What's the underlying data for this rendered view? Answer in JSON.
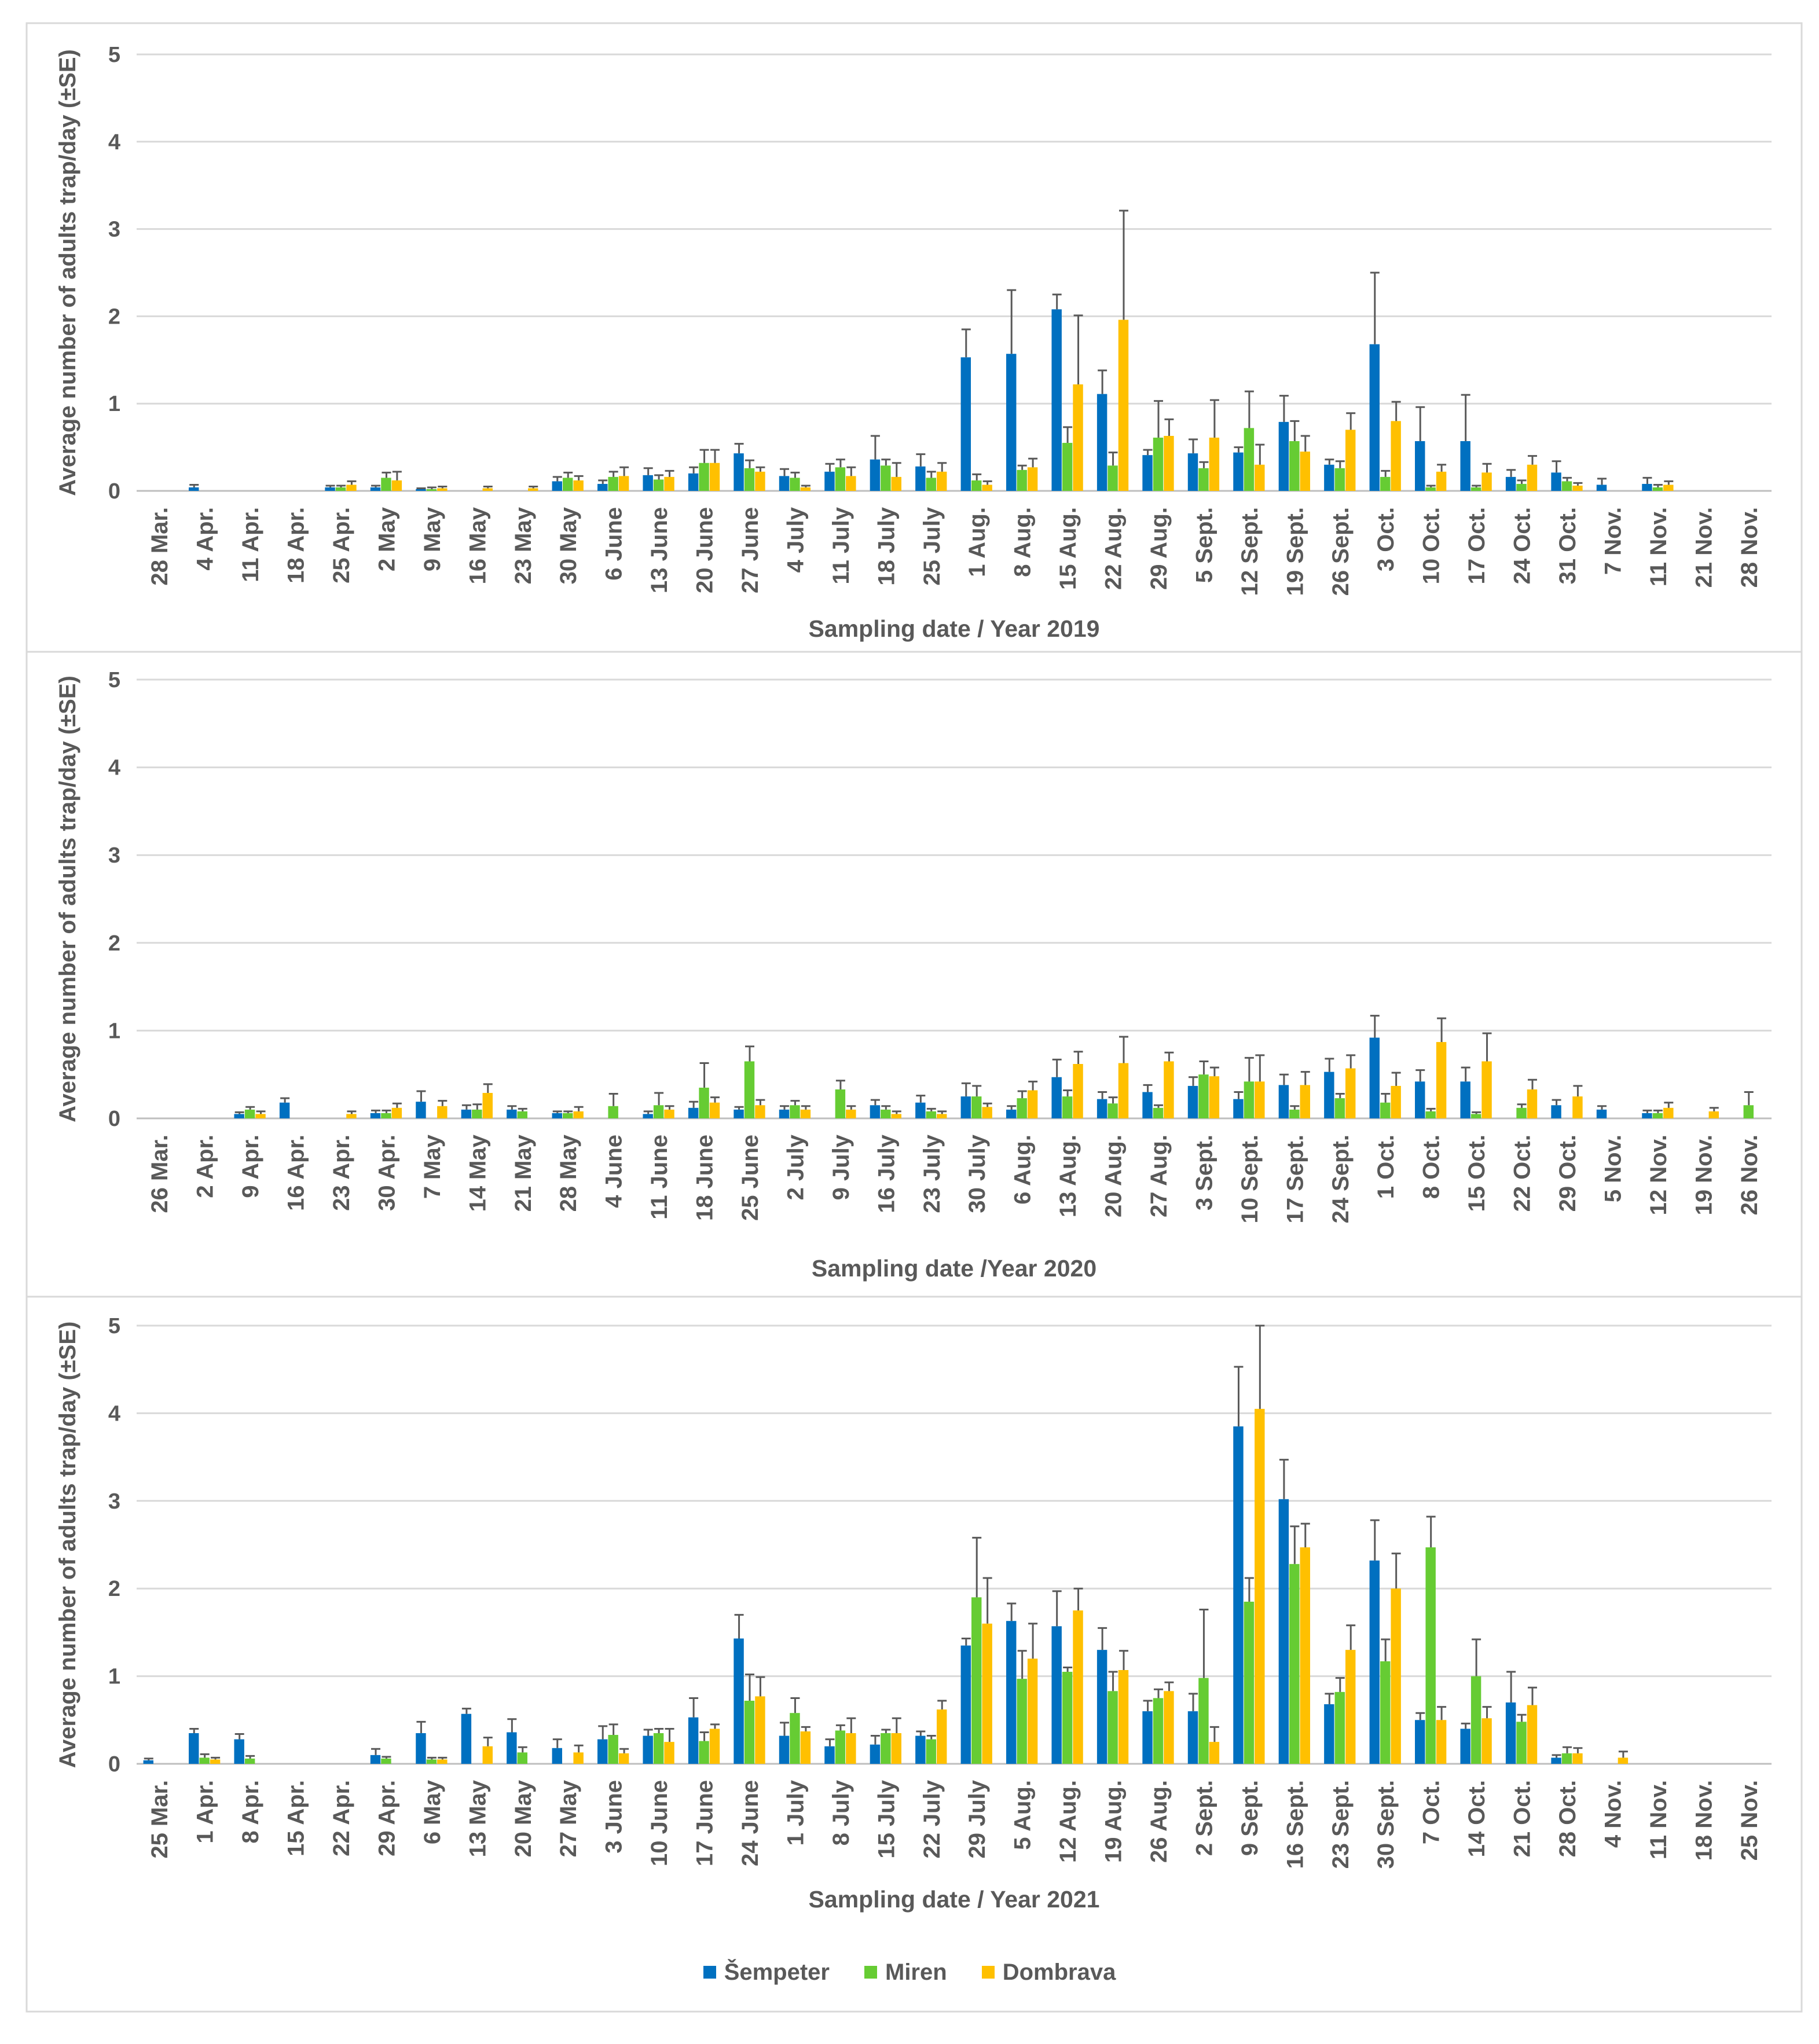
{
  "chart_data": [
    {
      "type": "bar",
      "xlabel": "Sampling date / Year 2019",
      "ylabel": "Average number of adults  trap/day (±SE)",
      "ylim": [
        0,
        5
      ],
      "yticks": [
        "0",
        "1",
        "2",
        "3",
        "4",
        "5"
      ],
      "grid": true,
      "categories": [
        "28 Mar.",
        "4 Apr.",
        "11 Apr.",
        "18 Apr.",
        "25 Apr.",
        "2 May",
        "9 May",
        "16 May",
        "23 May",
        "30 May",
        "6 June",
        "13 June",
        "20 June",
        "27 June",
        "4 July",
        "11 July",
        "18 July",
        "25 July",
        "1 Aug.",
        "8 Aug.",
        "15 Aug.",
        "22 Aug.",
        "29 Aug.",
        "5 Sept.",
        "12 Sept.",
        "19 Sept.",
        "26 Sept.",
        "3 Oct.",
        "10 Oct.",
        "17 Oct.",
        "24 Oct.",
        "31 Oct.",
        "7 Nov.",
        "11 Nov.",
        "21 Nov.",
        "28 Nov."
      ],
      "series": [
        {
          "name": "Šempeter",
          "values": [
            0,
            0.04,
            0,
            0,
            0.04,
            0.04,
            0.02,
            0,
            0,
            0.11,
            0.08,
            0.18,
            0.2,
            0.43,
            0.17,
            0.22,
            0.36,
            0.28,
            1.53,
            1.57,
            2.08,
            1.11,
            0.41,
            0.43,
            0.44,
            0.79,
            0.3,
            1.68,
            0.57,
            0.57,
            0.16,
            0.21,
            0.07,
            0.08,
            0,
            0
          ],
          "errors": [
            0,
            0.03,
            0,
            0,
            0.02,
            0.02,
            0.01,
            0,
            0,
            0.05,
            0.04,
            0.08,
            0.07,
            0.11,
            0.08,
            0.09,
            0.27,
            0.14,
            0.32,
            0.73,
            0.17,
            0.27,
            0.06,
            0.16,
            0.06,
            0.3,
            0.06,
            0.82,
            0.39,
            0.53,
            0.08,
            0.13,
            0.07,
            0.07,
            0,
            0
          ]
        },
        {
          "name": "Miren",
          "values": [
            0,
            0,
            0,
            0,
            0.04,
            0.15,
            0.02,
            0,
            0,
            0.15,
            0.16,
            0.13,
            0.32,
            0.26,
            0.15,
            0.27,
            0.29,
            0.15,
            0.12,
            0.24,
            0.55,
            0.29,
            0.61,
            0.26,
            0.72,
            0.57,
            0.26,
            0.16,
            0.04,
            0.04,
            0.08,
            0.11,
            0,
            0.04,
            0,
            0
          ],
          "errors": [
            0,
            0,
            0,
            0,
            0.02,
            0.06,
            0.02,
            0,
            0,
            0.06,
            0.06,
            0.05,
            0.15,
            0.09,
            0.06,
            0.09,
            0.07,
            0.07,
            0.07,
            0.05,
            0.18,
            0.15,
            0.42,
            0.07,
            0.42,
            0.23,
            0.08,
            0.07,
            0.02,
            0.02,
            0.04,
            0.04,
            0,
            0.03,
            0,
            0
          ]
        },
        {
          "name": "Dombrava",
          "values": [
            0,
            0,
            0,
            0,
            0.07,
            0.12,
            0.03,
            0.03,
            0.03,
            0.12,
            0.17,
            0.16,
            0.32,
            0.22,
            0.04,
            0.17,
            0.16,
            0.22,
            0.07,
            0.27,
            1.22,
            1.96,
            0.63,
            0.61,
            0.3,
            0.45,
            0.7,
            0.8,
            0.22,
            0.21,
            0.3,
            0.06,
            0,
            0.07,
            0,
            0
          ],
          "errors": [
            0,
            0,
            0,
            0,
            0.04,
            0.1,
            0.02,
            0.02,
            0.02,
            0.05,
            0.1,
            0.07,
            0.15,
            0.05,
            0.02,
            0.1,
            0.16,
            0.1,
            0.04,
            0.1,
            0.79,
            1.25,
            0.19,
            0.43,
            0.23,
            0.18,
            0.19,
            0.22,
            0.08,
            0.1,
            0.1,
            0.03,
            0,
            0.04,
            0,
            0
          ]
        }
      ]
    },
    {
      "type": "bar",
      "xlabel": "Sampling date /Year 2020",
      "ylabel": "Average number of adults  trap/day (±SE)",
      "ylim": [
        0,
        5
      ],
      "yticks": [
        "0",
        "1",
        "2",
        "3",
        "4",
        "5"
      ],
      "grid": true,
      "categories": [
        "26 Mar.",
        "2 Apr.",
        "9 Apr.",
        "16 Apr.",
        "23 Apr.",
        "30 Apr.",
        "7 May",
        "14 May",
        "21 May",
        "28 May",
        "4 June",
        "11 June",
        "18 June",
        "25 June",
        "2 July",
        "9 July",
        "16 July",
        "23 July",
        "30 July",
        "6 Aug.",
        "13 Aug.",
        "20 Aug.",
        "27 Aug.",
        "3 Sept.",
        "10 Sept.",
        "17 Sept.",
        "24 Sept.",
        "1 Oct.",
        "8 Oct.",
        "15 Oct.",
        "22 Oct.",
        "29 Oct.",
        "5 Nov.",
        "12 Nov.",
        "19 Nov.",
        "26 Nov."
      ],
      "series": [
        {
          "name": "Šempeter",
          "values": [
            0,
            0,
            0.05,
            0.18,
            0,
            0.06,
            0.19,
            0.1,
            0.1,
            0.06,
            0,
            0.05,
            0.12,
            0.1,
            0.1,
            0,
            0.15,
            0.18,
            0.25,
            0.1,
            0.47,
            0.22,
            0.3,
            0.37,
            0.22,
            0.38,
            0.53,
            0.92,
            0.42,
            0.42,
            0,
            0.15,
            0.1,
            0.06,
            0,
            0
          ],
          "errors": [
            0,
            0,
            0.02,
            0.05,
            0,
            0.03,
            0.12,
            0.05,
            0.04,
            0.02,
            0,
            0.03,
            0.07,
            0.03,
            0.04,
            0,
            0.06,
            0.08,
            0.15,
            0.04,
            0.2,
            0.08,
            0.08,
            0.1,
            0.08,
            0.12,
            0.15,
            0.25,
            0.13,
            0.16,
            0,
            0.06,
            0.04,
            0.03,
            0,
            0
          ]
        },
        {
          "name": "Miren",
          "values": [
            0,
            0,
            0.1,
            0,
            0,
            0.06,
            0,
            0.1,
            0.08,
            0.06,
            0.14,
            0.15,
            0.35,
            0.65,
            0.15,
            0.33,
            0.1,
            0.08,
            0.25,
            0.23,
            0.25,
            0.17,
            0.12,
            0.5,
            0.42,
            0.1,
            0.23,
            0.18,
            0.08,
            0.05,
            0.12,
            0,
            0,
            0.06,
            0,
            0.15
          ],
          "errors": [
            0,
            0,
            0.03,
            0,
            0,
            0.03,
            0,
            0.06,
            0.03,
            0.02,
            0.14,
            0.14,
            0.28,
            0.17,
            0.05,
            0.1,
            0.04,
            0.03,
            0.12,
            0.08,
            0.07,
            0.07,
            0.03,
            0.15,
            0.27,
            0.04,
            0.05,
            0.1,
            0.03,
            0.02,
            0.04,
            0,
            0,
            0.03,
            0,
            0.15
          ]
        },
        {
          "name": "Dombrava",
          "values": [
            0,
            0,
            0.05,
            0,
            0.05,
            0.12,
            0.14,
            0.29,
            0,
            0.08,
            0,
            0.1,
            0.18,
            0.15,
            0.1,
            0.1,
            0.05,
            0.05,
            0.13,
            0.32,
            0.62,
            0.63,
            0.65,
            0.48,
            0.42,
            0.38,
            0.57,
            0.37,
            0.87,
            0.65,
            0.33,
            0.25,
            0,
            0.12,
            0.08,
            0
          ],
          "errors": [
            0,
            0,
            0.03,
            0,
            0.03,
            0.05,
            0.06,
            0.1,
            0,
            0.05,
            0,
            0.04,
            0.06,
            0.06,
            0.04,
            0.04,
            0.03,
            0.03,
            0.04,
            0.1,
            0.14,
            0.3,
            0.1,
            0.1,
            0.3,
            0.15,
            0.15,
            0.15,
            0.27,
            0.32,
            0.11,
            0.12,
            0,
            0.06,
            0.04,
            0
          ]
        }
      ]
    },
    {
      "type": "bar",
      "xlabel": "Sampling date / Year 2021",
      "ylabel": "Average number of adults  trap/day (±SE)",
      "ylim": [
        0,
        5
      ],
      "yticks": [
        "0",
        "1",
        "2",
        "3",
        "4",
        "5"
      ],
      "grid": true,
      "categories": [
        "25 Mar.",
        "1 Apr.",
        "8 Apr.",
        "15 Apr.",
        "22 Apr.",
        "29 Apr.",
        "6 May",
        "13 May",
        "20 May",
        "27 May",
        "3 June",
        "10 June",
        "17 June",
        "24 June",
        "1 July",
        "8 July",
        "15 July",
        "22 July",
        "29 July",
        "5 Aug.",
        "12 Aug.",
        "19 Aug.",
        "26 Aug.",
        "2 Sept.",
        "9 Sept.",
        "16 Sept.",
        "23 Sept.",
        "30 Sept.",
        "7 Oct.",
        "14 Oct.",
        "21 Oct.",
        "28 Oct.",
        "4 Nov.",
        "11 Nov.",
        "18 Nov.",
        "25 Nov."
      ],
      "series": [
        {
          "name": "Šempeter",
          "values": [
            0.04,
            0.35,
            0.28,
            0,
            0,
            0.1,
            0.35,
            0.57,
            0.36,
            0.18,
            0.28,
            0.32,
            0.53,
            1.43,
            0.32,
            0.2,
            0.22,
            0.32,
            1.35,
            1.63,
            1.57,
            1.3,
            0.6,
            0.6,
            3.85,
            3.02,
            0.68,
            2.32,
            0.5,
            0.4,
            0.7,
            0.07,
            0,
            0,
            0,
            0
          ],
          "errors": [
            0.02,
            0.05,
            0.06,
            0,
            0,
            0.07,
            0.13,
            0.06,
            0.15,
            0.1,
            0.15,
            0.07,
            0.22,
            0.27,
            0.15,
            0.08,
            0.1,
            0.05,
            0.08,
            0.2,
            0.4,
            0.25,
            0.12,
            0.2,
            0.68,
            0.45,
            0.12,
            0.46,
            0.08,
            0.06,
            0.35,
            0.03,
            0,
            0,
            0,
            0
          ]
        },
        {
          "name": "Miren",
          "values": [
            0,
            0.07,
            0.06,
            0,
            0,
            0.06,
            0.05,
            0,
            0.13,
            0,
            0.33,
            0.35,
            0.26,
            0.72,
            0.58,
            0.38,
            0.35,
            0.28,
            1.9,
            0.97,
            1.05,
            0.83,
            0.75,
            0.98,
            1.85,
            2.28,
            0.82,
            1.17,
            2.47,
            1.0,
            0.48,
            0.12,
            0,
            0,
            0,
            0
          ],
          "errors": [
            0,
            0.04,
            0.03,
            0,
            0,
            0.02,
            0.02,
            0,
            0.06,
            0,
            0.12,
            0.05,
            0.1,
            0.3,
            0.17,
            0.06,
            0.04,
            0.04,
            0.68,
            0.32,
            0.05,
            0.22,
            0.1,
            0.78,
            0.27,
            0.43,
            0.16,
            0.25,
            0.35,
            0.42,
            0.08,
            0.07,
            0,
            0,
            0,
            0
          ]
        },
        {
          "name": "Dombrava",
          "values": [
            0,
            0.05,
            0,
            0,
            0,
            0,
            0.05,
            0.2,
            0,
            0.13,
            0.12,
            0.25,
            0.4,
            0.77,
            0.37,
            0.35,
            0.35,
            0.62,
            1.6,
            1.2,
            1.75,
            1.07,
            0.83,
            0.25,
            4.05,
            2.47,
            1.3,
            2.0,
            0.5,
            0.52,
            0.67,
            0.12,
            0.07,
            0,
            0,
            0
          ],
          "errors": [
            0,
            0.02,
            0,
            0,
            0,
            0,
            0.02,
            0.1,
            0,
            0.08,
            0.05,
            0.15,
            0.05,
            0.22,
            0.05,
            0.17,
            0.17,
            0.1,
            0.52,
            0.4,
            0.25,
            0.22,
            0.1,
            0.17,
            0.95,
            0.27,
            0.28,
            0.4,
            0.15,
            0.13,
            0.2,
            0.06,
            0.07,
            0,
            0,
            0
          ]
        }
      ]
    }
  ],
  "legend": {
    "placement": "bottom-center",
    "items": [
      {
        "name": "Šempeter",
        "color": "#0070C0"
      },
      {
        "name": "Miren",
        "color": "#66CC33"
      },
      {
        "name": "Dombrava",
        "color": "#FFC000"
      }
    ]
  },
  "colors": {
    "series": [
      "#0070C0",
      "#66CC33",
      "#FFC000"
    ],
    "grid": "#D9D9D9",
    "error_bar": "#595959",
    "text": "#595959"
  }
}
